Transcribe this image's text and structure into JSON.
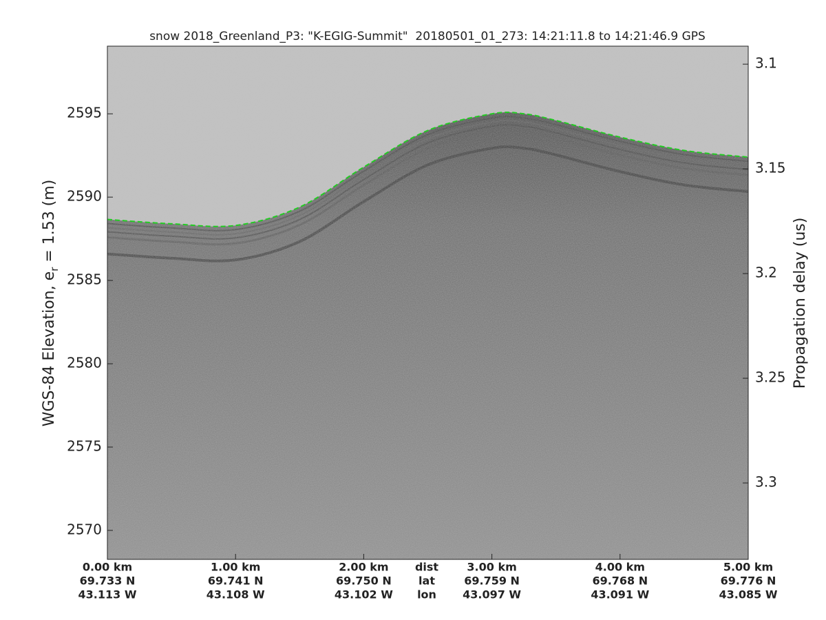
{
  "chart_data": {
    "type": "line",
    "title": "snow 2018_Greenland_P3: \"K-EGIG-Summit\"  20180501_01_273: 14:21:11.8 to 14:21:46.9 GPS",
    "ylabel": {
      "text": "WGS-84 Elevation, e",
      "subscript": "r",
      "after": " = 1.53 (m)"
    },
    "y2label": "Propagation delay (us)",
    "row_labels": [
      "dist",
      "lat",
      "lon"
    ],
    "x": [
      0,
      0.5,
      1.0,
      1.5,
      2.0,
      2.5,
      3.0,
      3.25,
      3.5,
      4.0,
      4.5,
      5.0
    ],
    "xlim": [
      0,
      5
    ],
    "xticks": [
      {
        "value": 0,
        "label": "0.00 km"
      },
      {
        "value": 1,
        "label": "1.00 km"
      },
      {
        "value": 2,
        "label": "2.00 km"
      },
      {
        "value": 3,
        "label": "3.00 km"
      },
      {
        "value": 4,
        "label": "4.00 km"
      },
      {
        "value": 5,
        "label": "5.00 km"
      }
    ],
    "xtick_lat": [
      "69.733 N",
      "69.741 N",
      "69.750 N",
      "69.759 N",
      "69.768 N",
      "69.776 N"
    ],
    "xtick_lon": [
      "43.113 W",
      "43.108 W",
      "43.102 W",
      "43.097 W",
      "43.091 W",
      "43.085 W"
    ],
    "ylim": [
      2568.26,
      2599.06
    ],
    "yticks": [
      2570,
      2575,
      2580,
      2585,
      2590,
      2595
    ],
    "y2lim": [
      3.0914,
      3.3365
    ],
    "y2ticks": [
      3.1,
      3.15,
      3.2,
      3.25,
      3.3
    ],
    "series": [
      {
        "color": "#22cc22",
        "values": [
          2588.66,
          2588.4,
          2588.3,
          2589.4,
          2591.8,
          2594.0,
          2595.0,
          2595.0,
          2594.6,
          2593.6,
          2592.8,
          2592.4
        ]
      }
    ]
  }
}
